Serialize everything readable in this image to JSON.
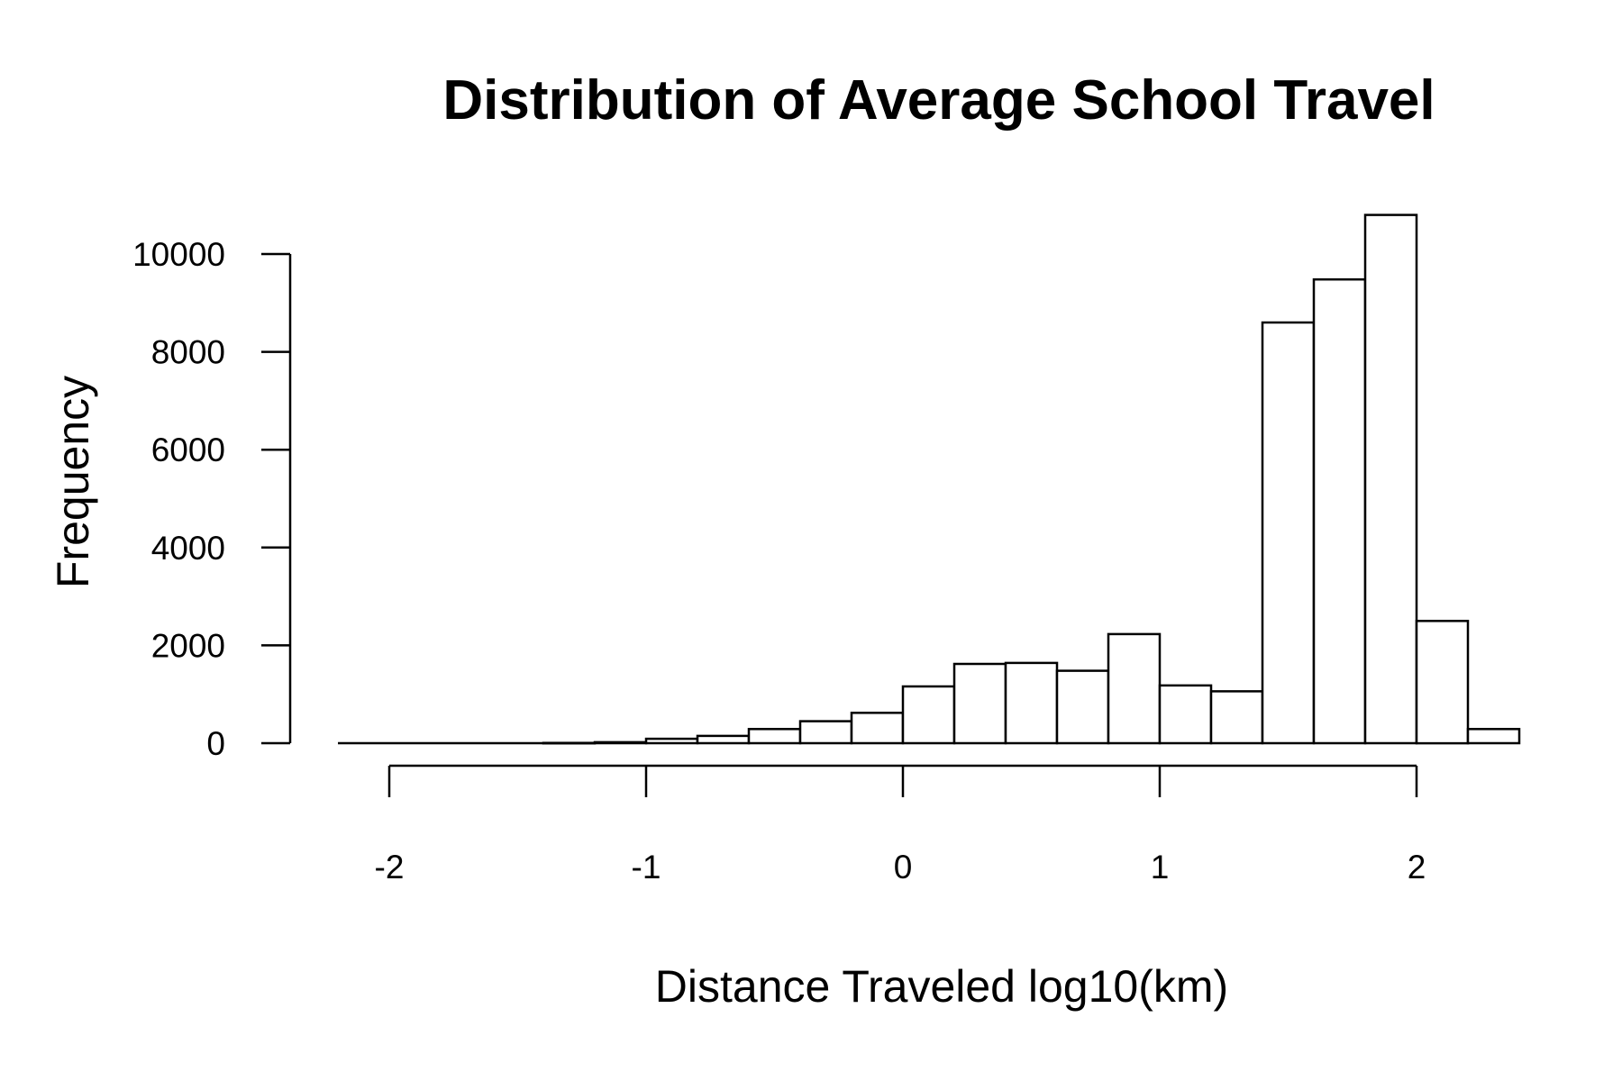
{
  "chart_data": {
    "type": "bar",
    "title": "Distribution of Average School Travel",
    "xlabel": "Distance Traveled log10(km)",
    "ylabel": "Frequency",
    "xlim": [
      -2.2,
      2.4
    ],
    "ylim": [
      0,
      10800
    ],
    "xticks": [
      -2,
      -1,
      0,
      1,
      2
    ],
    "yticks": [
      0,
      2000,
      4000,
      6000,
      8000,
      10000
    ],
    "bin_width": 0.2,
    "bins": [
      {
        "start": -2.2,
        "end": -2.0,
        "count": 0
      },
      {
        "start": -2.0,
        "end": -1.8,
        "count": 0
      },
      {
        "start": -1.8,
        "end": -1.6,
        "count": 0
      },
      {
        "start": -1.6,
        "end": -1.4,
        "count": 0
      },
      {
        "start": -1.4,
        "end": -1.2,
        "count": 5
      },
      {
        "start": -1.2,
        "end": -1.0,
        "count": 20
      },
      {
        "start": -1.0,
        "end": -0.8,
        "count": 90
      },
      {
        "start": -0.8,
        "end": -0.6,
        "count": 150
      },
      {
        "start": -0.6,
        "end": -0.4,
        "count": 290
      },
      {
        "start": -0.4,
        "end": -0.2,
        "count": 450
      },
      {
        "start": -0.2,
        "end": 0.0,
        "count": 620
      },
      {
        "start": 0.0,
        "end": 0.2,
        "count": 1160
      },
      {
        "start": 0.2,
        "end": 0.4,
        "count": 1620
      },
      {
        "start": 0.4,
        "end": 0.6,
        "count": 1640
      },
      {
        "start": 0.6,
        "end": 0.8,
        "count": 1480
      },
      {
        "start": 0.8,
        "end": 1.0,
        "count": 2230
      },
      {
        "start": 1.0,
        "end": 1.2,
        "count": 1180
      },
      {
        "start": 1.2,
        "end": 1.4,
        "count": 1060
      },
      {
        "start": 1.4,
        "end": 1.6,
        "count": 8600
      },
      {
        "start": 1.6,
        "end": 1.8,
        "count": 9480
      },
      {
        "start": 1.8,
        "end": 2.0,
        "count": 10800
      },
      {
        "start": 2.0,
        "end": 2.2,
        "count": 2500
      },
      {
        "start": 2.2,
        "end": 2.4,
        "count": 290
      }
    ],
    "grid": false,
    "legend": "none"
  }
}
